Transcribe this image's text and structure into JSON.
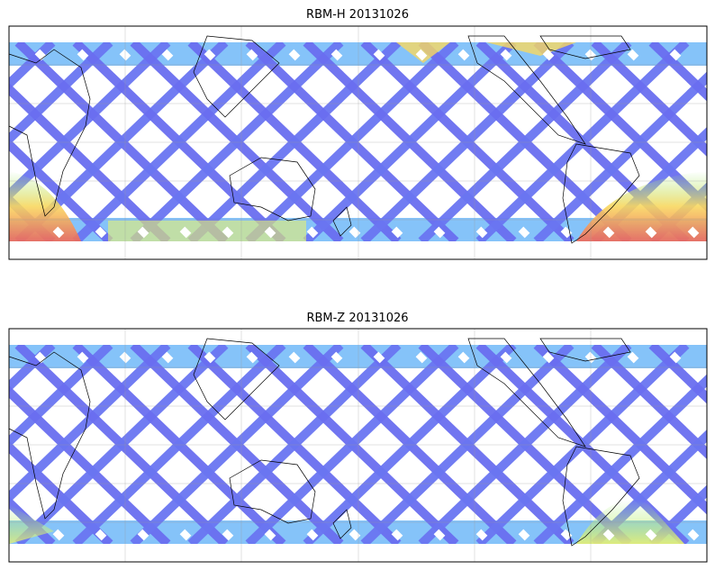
{
  "panels": [
    {
      "title": "RBM-H 20131026"
    },
    {
      "title": "RBM-Z 20131026"
    }
  ]
}
